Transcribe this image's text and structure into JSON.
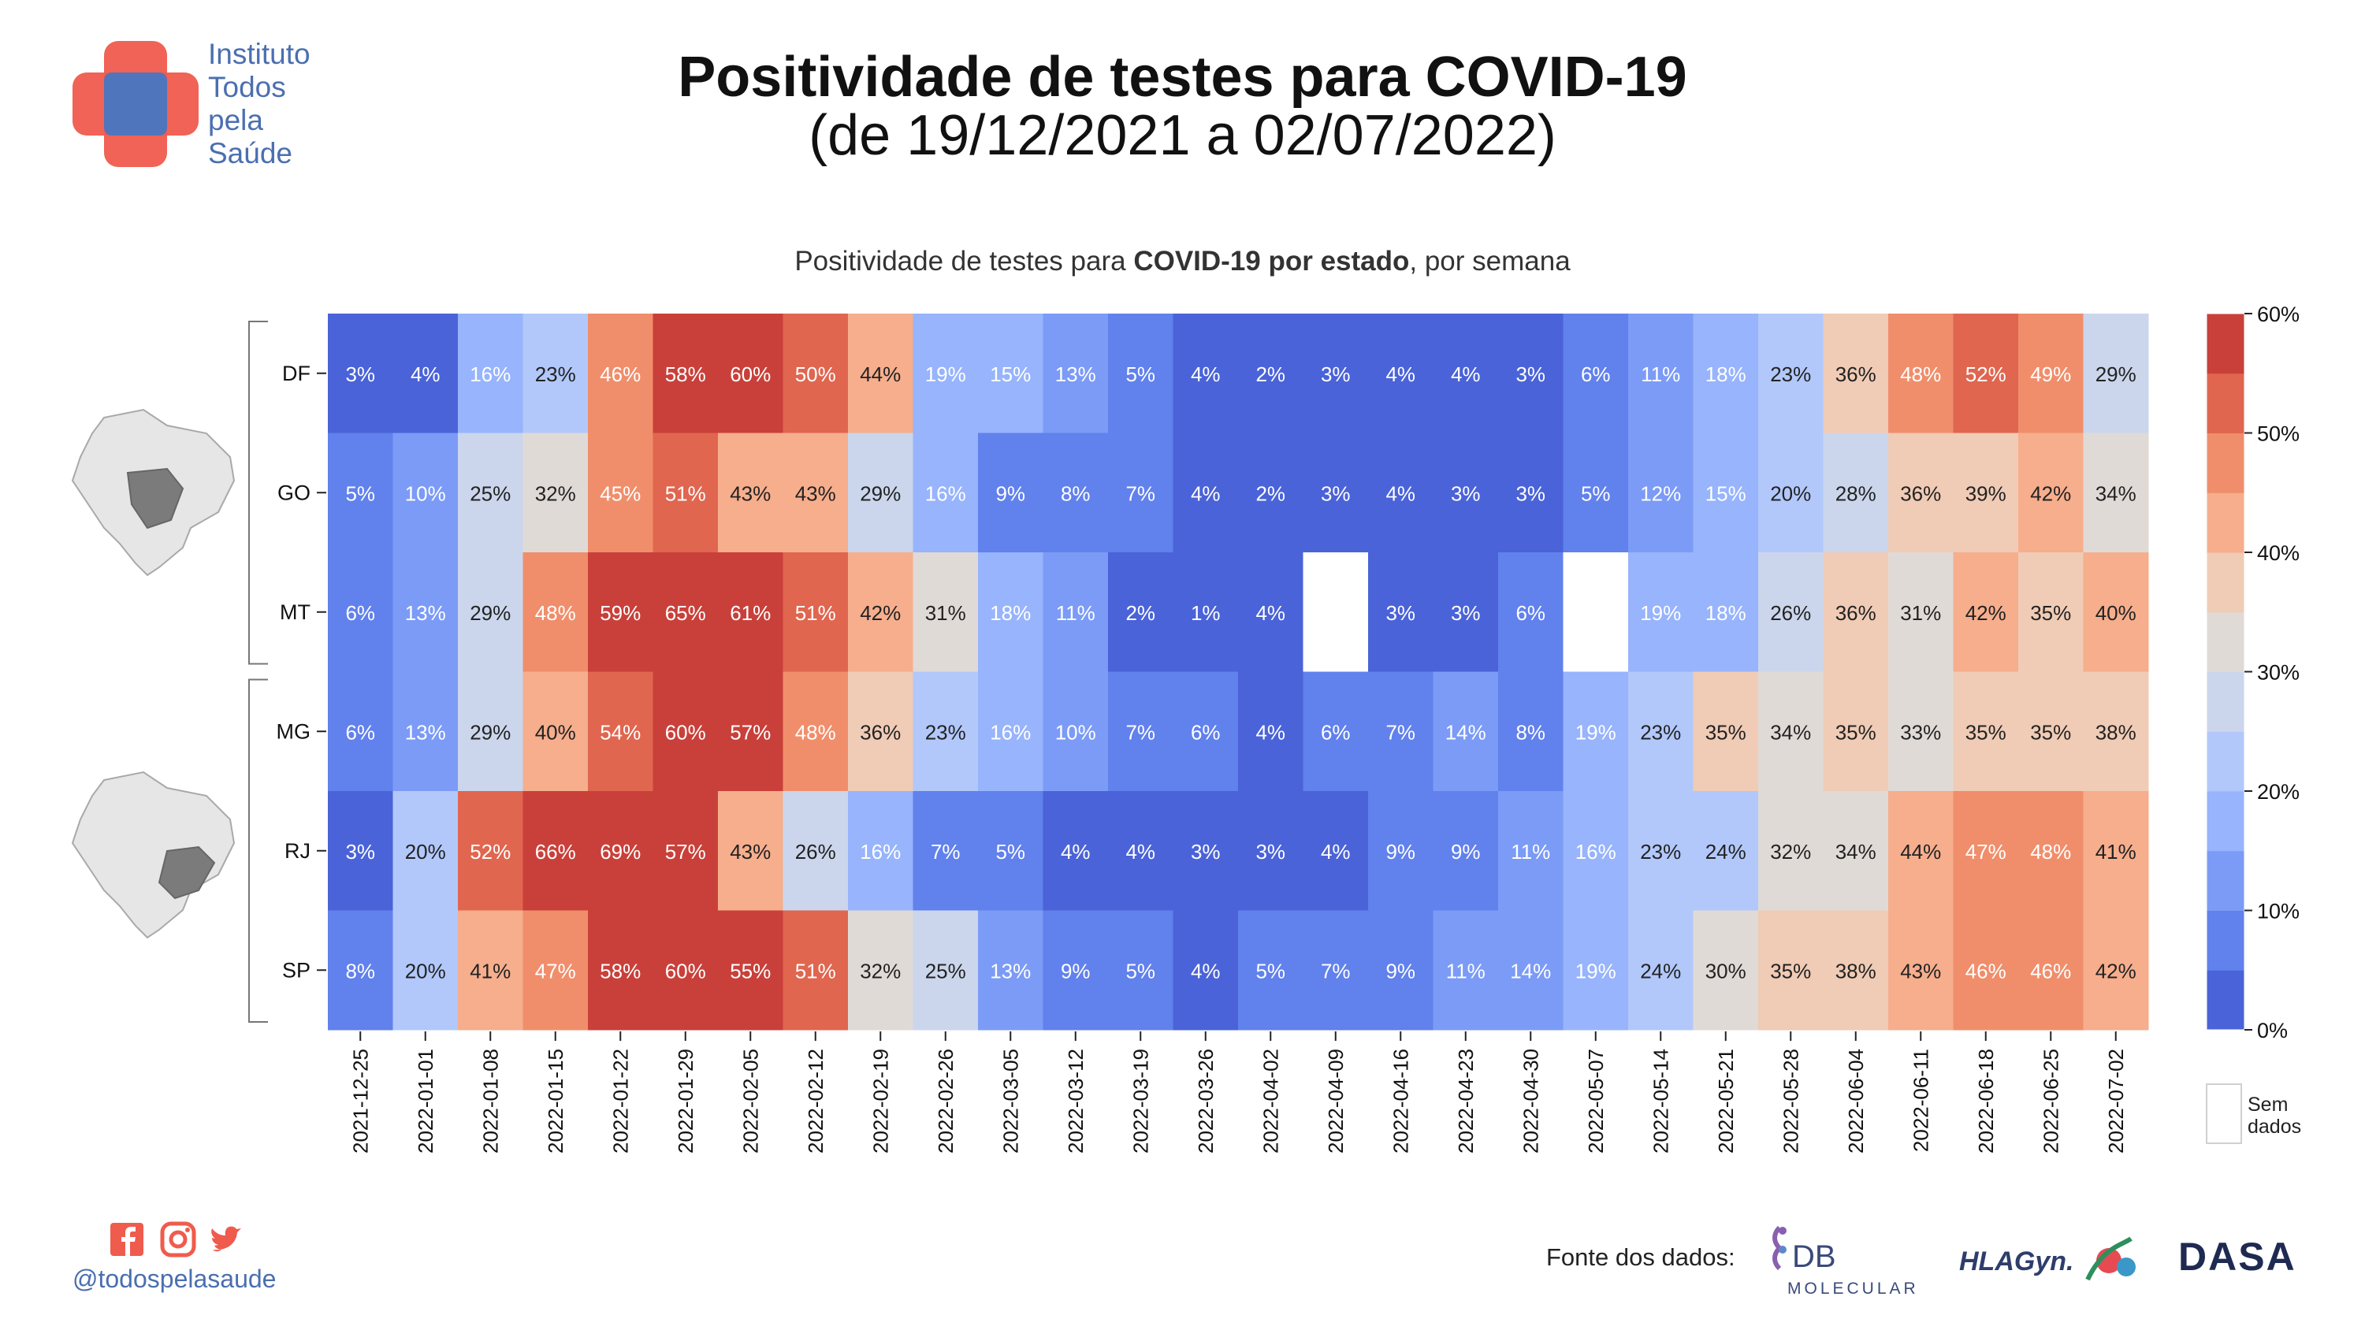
{
  "logo": {
    "lines": [
      "Instituto",
      "Todos",
      "pela",
      "Saúde"
    ]
  },
  "header": {
    "title": "Positividade de testes para COVID-19",
    "subtitle": "(de 19/12/2021 a 02/07/2022)"
  },
  "chart_subtitle": {
    "prefix": "Positividade de testes para ",
    "bold": "COVID-19 por estado",
    "suffix": ", por semana"
  },
  "chart_data": {
    "type": "heatmap",
    "x": [
      "2021-12-25",
      "2022-01-01",
      "2022-01-08",
      "2022-01-15",
      "2022-01-22",
      "2022-01-29",
      "2022-02-05",
      "2022-02-12",
      "2022-02-19",
      "2022-02-26",
      "2022-03-05",
      "2022-03-12",
      "2022-03-19",
      "2022-03-26",
      "2022-04-02",
      "2022-04-09",
      "2022-04-16",
      "2022-04-23",
      "2022-04-30",
      "2022-05-07",
      "2022-05-14",
      "2022-05-21",
      "2022-05-28",
      "2022-06-04",
      "2022-06-11",
      "2022-06-18",
      "2022-06-25",
      "2022-07-02"
    ],
    "y": [
      "DF",
      "GO",
      "MT",
      "MG",
      "RJ",
      "SP"
    ],
    "values": [
      [
        3,
        4,
        16,
        23,
        46,
        58,
        60,
        50,
        44,
        19,
        15,
        13,
        5,
        4,
        2,
        3,
        4,
        4,
        3,
        6,
        11,
        18,
        23,
        36,
        48,
        52,
        49,
        29
      ],
      [
        5,
        10,
        25,
        32,
        45,
        51,
        43,
        43,
        29,
        16,
        9,
        8,
        7,
        4,
        2,
        3,
        4,
        3,
        3,
        5,
        12,
        15,
        20,
        28,
        36,
        39,
        42,
        34
      ],
      [
        6,
        13,
        29,
        48,
        59,
        65,
        61,
        51,
        42,
        31,
        18,
        11,
        2,
        1,
        4,
        null,
        3,
        3,
        6,
        null,
        19,
        18,
        26,
        36,
        31,
        42,
        35,
        40
      ],
      [
        6,
        13,
        29,
        40,
        54,
        60,
        57,
        48,
        36,
        23,
        16,
        10,
        7,
        6,
        4,
        6,
        7,
        14,
        8,
        19,
        23,
        35,
        34,
        35,
        33,
        35,
        35,
        38
      ],
      [
        3,
        20,
        52,
        66,
        69,
        57,
        43,
        26,
        16,
        7,
        5,
        4,
        4,
        3,
        3,
        4,
        9,
        9,
        11,
        16,
        23,
        24,
        32,
        34,
        44,
        47,
        48,
        41
      ],
      [
        8,
        20,
        41,
        47,
        58,
        60,
        55,
        51,
        32,
        25,
        13,
        9,
        5,
        4,
        5,
        7,
        9,
        11,
        14,
        19,
        24,
        30,
        35,
        38,
        43,
        46,
        46,
        42
      ]
    ],
    "value_suffix": "%",
    "colorbar": {
      "ticks": [
        "0%",
        "10%",
        "20%",
        "30%",
        "40%",
        "50%",
        "60%"
      ],
      "tick_values": [
        0,
        10,
        20,
        30,
        40,
        50,
        60
      ],
      "range": [
        0,
        60
      ],
      "bins": 12,
      "colors": [
        "#4a63d8",
        "#6181ec",
        "#7b9bf6",
        "#97b4fc",
        "#b2c8fb",
        "#cbd6ec",
        "#e0dad6",
        "#f0cbb5",
        "#f6ae8d",
        "#f08e6b",
        "#e0664f",
        "#c9403a"
      ]
    },
    "missing_label_lines": [
      "Sem",
      "dados"
    ],
    "groups": [
      {
        "states": [
          "DF",
          "GO",
          "MT"
        ],
        "highlight": "center-west"
      },
      {
        "states": [
          "MG",
          "RJ",
          "SP"
        ],
        "highlight": "southeast"
      }
    ]
  },
  "footer": {
    "handle": "@todospelasaude",
    "source_label": "Fonte dos dados:",
    "brands": {
      "db_top": "DB",
      "db_bottom": "MOLECULAR",
      "hla": "HLAGyn.",
      "dasa": "DASA"
    },
    "social_icons": [
      "facebook-icon",
      "instagram-icon",
      "twitter-icon"
    ]
  }
}
